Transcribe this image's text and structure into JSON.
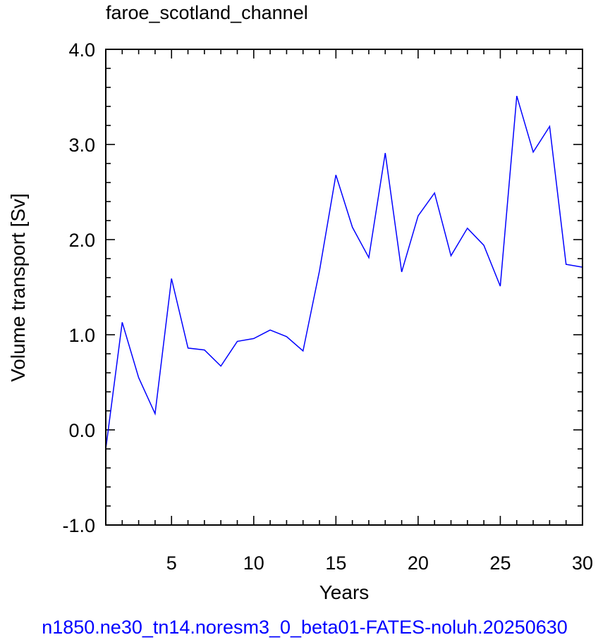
{
  "chart_data": {
    "type": "line",
    "title": "faroe_scotland_channel",
    "xlabel": "Years",
    "ylabel": "Volume transport [Sv]",
    "footer": "n1850.ne30_tn14.noresm3_0_beta01-FATES-noluh.20250630",
    "xlim": [
      1,
      30
    ],
    "ylim": [
      -1.0,
      4.0
    ],
    "xticks": [
      5,
      10,
      15,
      20,
      25,
      30
    ],
    "xtick_labels": [
      "5",
      "10",
      "15",
      "20",
      "25",
      "30"
    ],
    "yticks": [
      -1.0,
      0.0,
      1.0,
      2.0,
      3.0,
      4.0
    ],
    "ytick_labels": [
      "-1.0",
      "0.0",
      "1.0",
      "2.0",
      "3.0",
      "4.0"
    ],
    "grid": false,
    "series": [
      {
        "color": "#0000ff",
        "x": [
          1,
          2,
          3,
          4,
          5,
          6,
          7,
          8,
          9,
          10,
          11,
          12,
          13,
          14,
          15,
          16,
          17,
          18,
          19,
          20,
          21,
          22,
          23,
          24,
          25,
          26,
          27,
          28,
          29,
          30
        ],
        "values": [
          -0.2,
          1.13,
          0.55,
          0.17,
          1.59,
          0.86,
          0.84,
          0.67,
          0.93,
          0.96,
          1.05,
          0.98,
          0.83,
          1.67,
          2.68,
          2.13,
          1.81,
          2.91,
          1.66,
          2.25,
          2.49,
          1.83,
          2.12,
          1.94,
          1.51,
          3.51,
          2.92,
          3.19,
          1.74,
          1.71
        ]
      }
    ],
    "colors": {
      "axis": "#000000",
      "footer": "#0000ff"
    }
  }
}
